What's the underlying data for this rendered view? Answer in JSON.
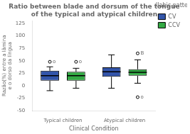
{
  "chart_data": {
    "type": "box",
    "title": "Ratio between blade and dorsum of the tongue of the typical and atypical children",
    "xlabel": "Clinical Condition",
    "ylabel": "Razão(%) entre a lâmina e o dorso da língua",
    "categories": [
      "Typical children",
      "Atypical children"
    ],
    "series": [
      {
        "name": "CV",
        "color": "#3355aa",
        "values": [
          {
            "q1": 10,
            "median": 20,
            "q3": 30,
            "whisker_low": -10,
            "whisker_high": 38,
            "outliers": [
              48
            ],
            "outlier_labels": [
              "o"
            ]
          },
          {
            "q1": 18,
            "median": 28,
            "q3": 37,
            "whisker_low": -5,
            "whisker_high": 62,
            "outliers": [],
            "outlier_labels": []
          }
        ]
      },
      {
        "name": "CCV",
        "color": "#33aa44",
        "values": [
          {
            "q1": 10,
            "median": 20,
            "q3": 28,
            "whisker_low": -5,
            "whisker_high": 35,
            "outliers": [
              48
            ],
            "outlier_labels": [
              "o"
            ]
          },
          {
            "q1": 20,
            "median": 27,
            "q3": 33,
            "whisker_low": 5,
            "whisker_high": 52,
            "outliers": [
              -23,
              65
            ],
            "outlier_labels": [
              "o",
              "B"
            ]
          }
        ]
      }
    ],
    "legend_title": "Syllabic pattern",
    "legend": "right",
    "ylim": [
      -50,
      130
    ],
    "yticks": [
      -50,
      -25,
      0,
      25,
      50,
      75,
      100,
      125
    ],
    "grid": false
  }
}
